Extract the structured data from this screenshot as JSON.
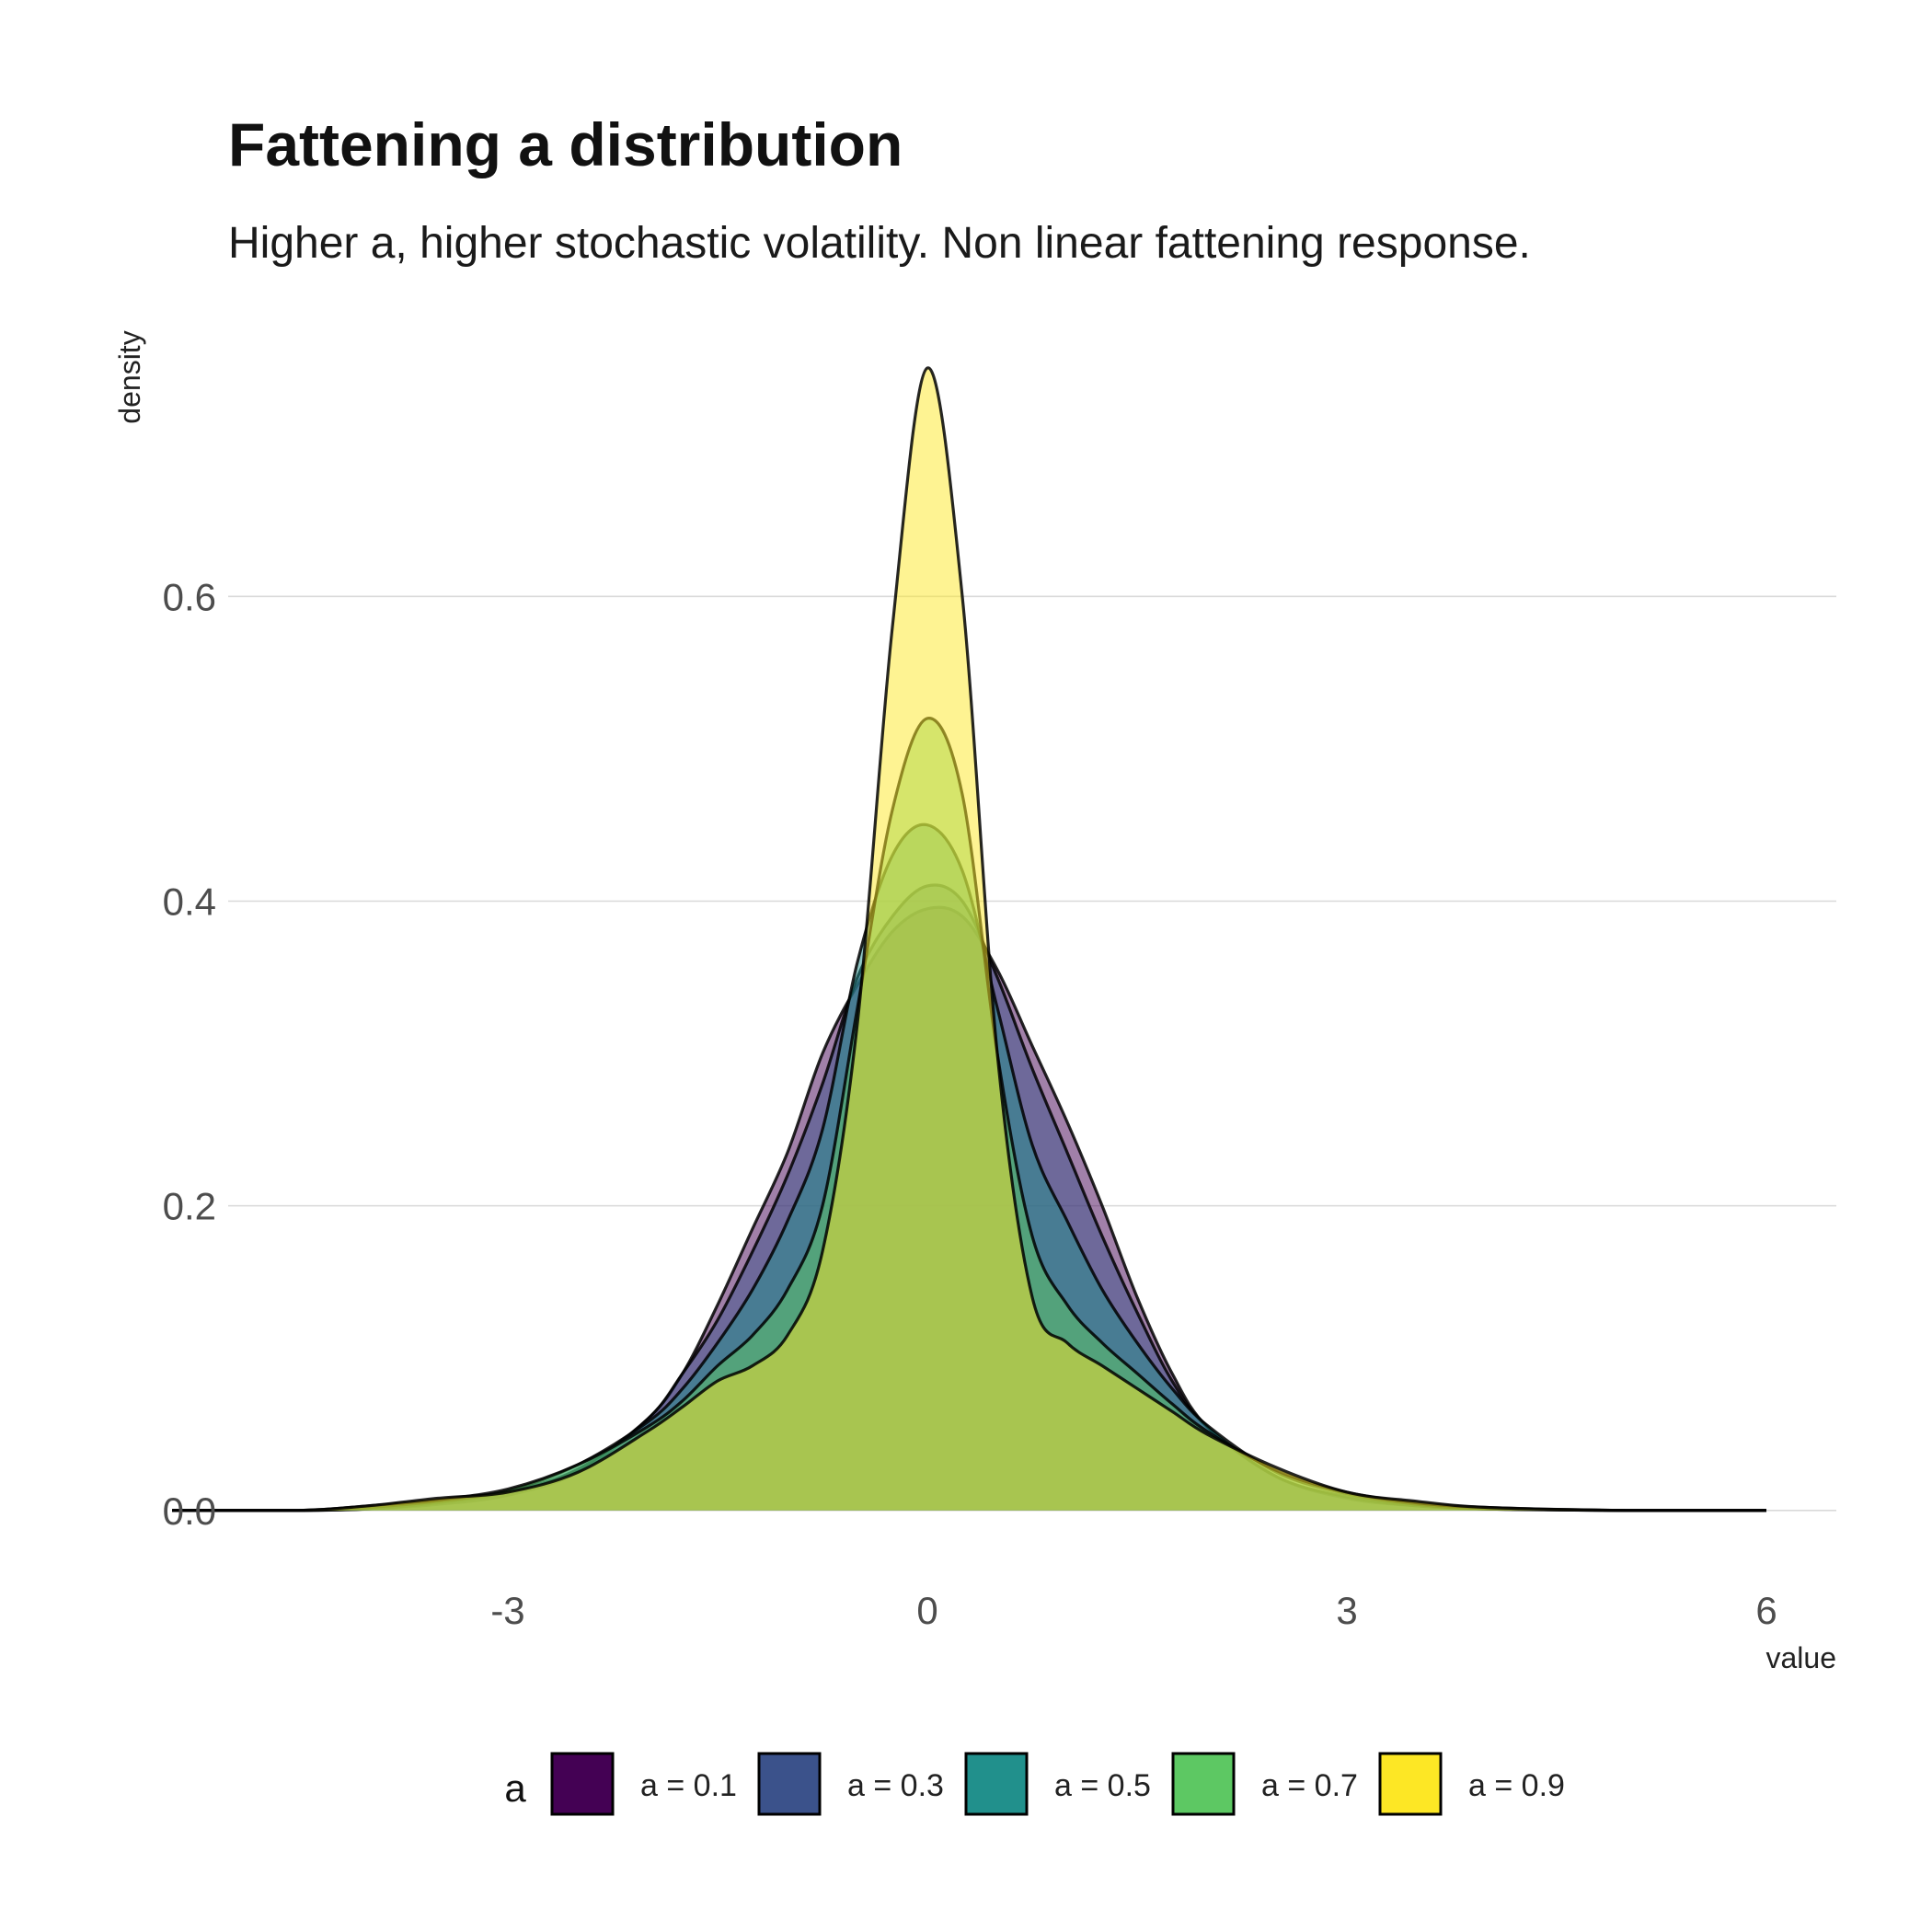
{
  "chart_data": {
    "type": "area",
    "title": "Fattening a distribution",
    "subtitle": "Higher a, higher stochastic volatility. Non linear fattening response.",
    "xlabel": "value",
    "ylabel": "density",
    "xlim": [
      -5,
      6.5
    ],
    "ylim": [
      -0.04,
      0.75
    ],
    "x_ticks": [
      -3,
      0,
      3,
      6
    ],
    "x_tick_labels": [
      "-3",
      "0",
      "3",
      "6"
    ],
    "y_ticks": [
      0.0,
      0.2,
      0.4,
      0.6
    ],
    "y_tick_labels": [
      "0.0",
      "0.2",
      "0.4",
      "0.6"
    ],
    "grid": "horizontal-major",
    "legend": {
      "title": "a",
      "position": "bottom"
    },
    "series": [
      {
        "name": "a = 0.1",
        "color": "#440154",
        "x": [
          -5.4,
          -4.5,
          -4.0,
          -3.5,
          -3.0,
          -2.5,
          -2.0,
          -1.75,
          -1.5,
          -1.25,
          -1.0,
          -0.75,
          -0.5,
          -0.25,
          0.0,
          0.25,
          0.5,
          0.75,
          1.0,
          1.25,
          1.5,
          1.75,
          2.0,
          2.5,
          3.0,
          3.5,
          4.0,
          5.0,
          6.0
        ],
        "y": [
          0.0,
          0.0,
          0.001,
          0.004,
          0.01,
          0.025,
          0.06,
          0.09,
          0.135,
          0.185,
          0.235,
          0.3,
          0.345,
          0.38,
          0.395,
          0.39,
          0.355,
          0.305,
          0.255,
          0.2,
          0.14,
          0.09,
          0.055,
          0.022,
          0.008,
          0.003,
          0.001,
          0.0,
          0.0
        ]
      },
      {
        "name": "a = 0.3",
        "color": "#3b528b",
        "x": [
          -5.4,
          -4.5,
          -4.0,
          -3.5,
          -3.0,
          -2.5,
          -2.0,
          -1.75,
          -1.5,
          -1.25,
          -1.0,
          -0.75,
          -0.5,
          -0.25,
          0.0,
          0.25,
          0.5,
          0.75,
          1.0,
          1.25,
          1.5,
          1.75,
          2.0,
          2.5,
          3.0,
          3.5,
          4.0,
          5.0,
          6.0
        ],
        "y": [
          0.0,
          0.0,
          0.001,
          0.005,
          0.012,
          0.027,
          0.06,
          0.09,
          0.125,
          0.17,
          0.22,
          0.28,
          0.35,
          0.39,
          0.41,
          0.4,
          0.35,
          0.29,
          0.235,
          0.18,
          0.13,
          0.085,
          0.055,
          0.022,
          0.009,
          0.003,
          0.001,
          0.0,
          0.0
        ]
      },
      {
        "name": "a = 0.5",
        "color": "#21908c",
        "x": [
          -5.4,
          -4.5,
          -4.0,
          -3.5,
          -3.0,
          -2.5,
          -2.0,
          -1.75,
          -1.5,
          -1.25,
          -1.0,
          -0.75,
          -0.5,
          -0.25,
          0.0,
          0.25,
          0.5,
          0.75,
          1.0,
          1.25,
          1.5,
          1.75,
          2.0,
          2.5,
          3.0,
          3.5,
          4.0,
          5.0,
          6.0
        ],
        "y": [
          0.0,
          0.0,
          0.002,
          0.006,
          0.013,
          0.03,
          0.058,
          0.08,
          0.11,
          0.145,
          0.19,
          0.25,
          0.36,
          0.43,
          0.45,
          0.42,
          0.33,
          0.24,
          0.19,
          0.145,
          0.11,
          0.08,
          0.056,
          0.025,
          0.011,
          0.004,
          0.001,
          0.0,
          0.0
        ]
      },
      {
        "name": "a = 0.7",
        "color": "#5dc863",
        "x": [
          -5.4,
          -4.5,
          -4.0,
          -3.5,
          -3.0,
          -2.5,
          -2.0,
          -1.75,
          -1.5,
          -1.25,
          -1.0,
          -0.75,
          -0.5,
          -0.25,
          0.0,
          0.25,
          0.5,
          0.75,
          1.0,
          1.25,
          1.5,
          1.75,
          2.0,
          2.5,
          3.0,
          3.5,
          4.0,
          5.0,
          6.0
        ],
        "y": [
          0.0,
          0.0,
          0.003,
          0.007,
          0.014,
          0.03,
          0.055,
          0.072,
          0.095,
          0.115,
          0.145,
          0.2,
          0.33,
          0.46,
          0.52,
          0.47,
          0.3,
          0.18,
          0.135,
          0.11,
          0.09,
          0.07,
          0.052,
          0.026,
          0.012,
          0.005,
          0.002,
          0.0,
          0.0
        ]
      },
      {
        "name": "a = 0.9",
        "color": "#fde725",
        "x": [
          -5.4,
          -4.5,
          -4.0,
          -3.5,
          -3.0,
          -2.5,
          -2.0,
          -1.75,
          -1.5,
          -1.25,
          -1.0,
          -0.75,
          -0.5,
          -0.25,
          0.0,
          0.25,
          0.5,
          0.75,
          1.0,
          1.25,
          1.5,
          1.75,
          2.0,
          2.5,
          3.0,
          3.5,
          4.0,
          5.0,
          6.0
        ],
        "y": [
          0.0,
          0.0,
          0.003,
          0.008,
          0.012,
          0.025,
          0.052,
          0.068,
          0.085,
          0.095,
          0.115,
          0.17,
          0.32,
          0.58,
          0.75,
          0.6,
          0.3,
          0.14,
          0.11,
          0.095,
          0.08,
          0.065,
          0.05,
          0.028,
          0.012,
          0.006,
          0.002,
          0.0,
          0.0
        ]
      }
    ]
  }
}
